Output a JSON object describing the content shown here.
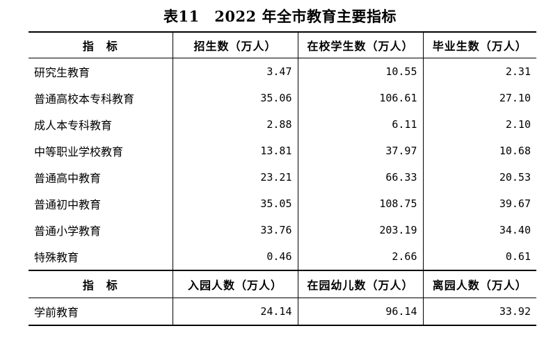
{
  "title": "表11　2022 年全市教育主要指标",
  "headers": [
    "指　标",
    "招生数（万人）",
    "在校学生数（万人）",
    "毕业生数（万人）"
  ],
  "rows": [
    {
      "name": "研究生教育",
      "v1": "3.47",
      "v2": "10.55",
      "v3": "2.31"
    },
    {
      "name": "普通高校本专科教育",
      "v1": "35.06",
      "v2": "106.61",
      "v3": "27.10"
    },
    {
      "name": "成人本专科教育",
      "v1": "2.88",
      "v2": "6.11",
      "v3": "2.10"
    },
    {
      "name": "中等职业学校教育",
      "v1": "13.81",
      "v2": "37.97",
      "v3": "10.68"
    },
    {
      "name": "普通高中教育",
      "v1": "23.21",
      "v2": "66.33",
      "v3": "20.53"
    },
    {
      "name": "普通初中教育",
      "v1": "35.05",
      "v2": "108.75",
      "v3": "39.67"
    },
    {
      "name": "普通小学教育",
      "v1": "33.76",
      "v2": "203.19",
      "v3": "34.40"
    },
    {
      "name": "特殊教育",
      "v1": "0.46",
      "v2": "2.66",
      "v3": "0.61"
    }
  ],
  "preschool_headers": [
    "指　标",
    "入园人数（万人）",
    "在园幼儿数（万人）",
    "离园人数（万人）"
  ],
  "preschool_row": {
    "name": "学前教育",
    "v1": "24.14",
    "v2": "96.14",
    "v3": "33.92"
  }
}
